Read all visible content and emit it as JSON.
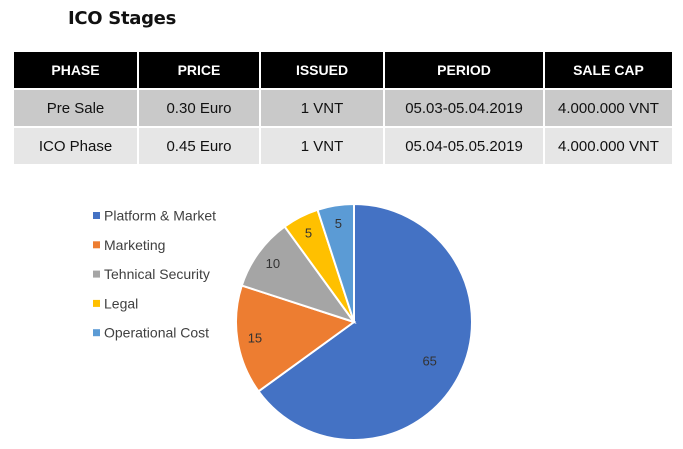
{
  "title": "ICO Stages",
  "table": {
    "headers": [
      "PHASE",
      "PRICE",
      "ISSUED",
      "PERIOD",
      "SALE CAP"
    ],
    "rows": [
      [
        "Pre Sale",
        "0.30 Euro",
        "1 VNT",
        "05.03-05.04.2019",
        "4.000.000 VNT"
      ],
      [
        "ICO Phase",
        "0.45 Euro",
        "1 VNT",
        "05.04-05.05.2019",
        "4.000.000 VNT"
      ]
    ]
  },
  "chart_data": {
    "type": "pie",
    "title": "",
    "legend_position": "left",
    "start": "top-clockwise",
    "slices": [
      {
        "label": "Platform & Market",
        "value": 65,
        "color": "#4472C4"
      },
      {
        "label": "Marketing",
        "value": 15,
        "color": "#ED7D31"
      },
      {
        "label": "Tehnical Security",
        "value": 10,
        "color": "#A5A5A5"
      },
      {
        "label": "Legal",
        "value": 5,
        "color": "#FFC000"
      },
      {
        "label": "Operational Cost",
        "value": 5,
        "color": "#5B9BD5"
      }
    ]
  }
}
